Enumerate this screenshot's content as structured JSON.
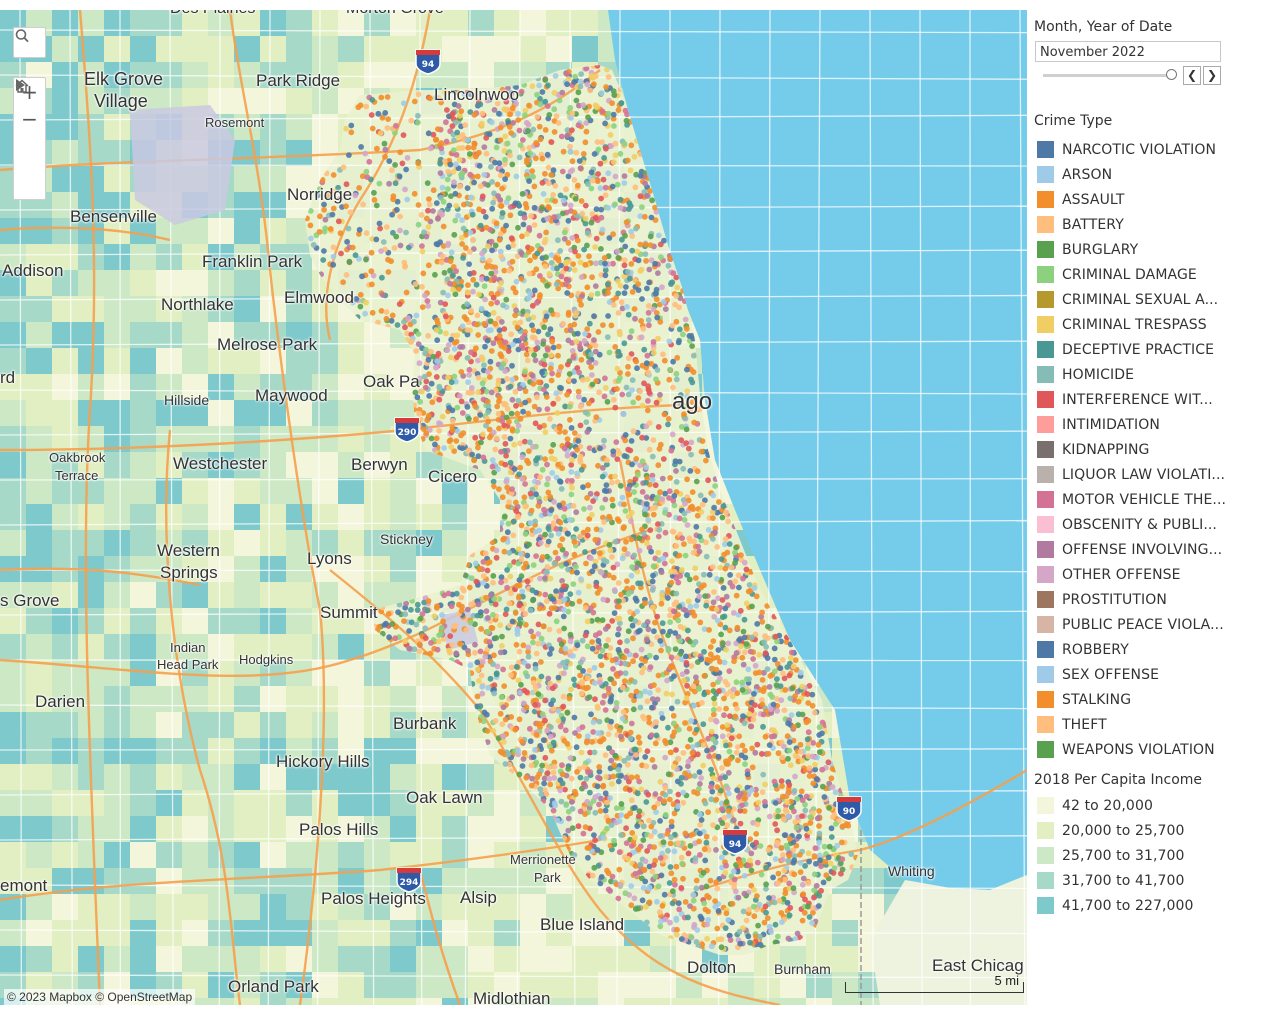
{
  "filter": {
    "title": "Month, Year of Date",
    "value": "November 2022",
    "prev_icon": "chevron-left-icon",
    "next_icon": "chevron-right-icon"
  },
  "crime_legend": {
    "title": "Crime Type",
    "items": [
      {
        "label": "NARCOTIC VIOLATION",
        "color": "#4e79a7"
      },
      {
        "label": "ARSON",
        "color": "#a0cbe8"
      },
      {
        "label": "ASSAULT",
        "color": "#f28e2b"
      },
      {
        "label": "BATTERY",
        "color": "#ffbe7d"
      },
      {
        "label": "BURGLARY",
        "color": "#59a14f"
      },
      {
        "label": "CRIMINAL DAMAGE",
        "color": "#8cd17d"
      },
      {
        "label": "CRIMINAL SEXUAL A...",
        "color": "#b6992d"
      },
      {
        "label": "CRIMINAL TRESPASS",
        "color": "#f1ce63"
      },
      {
        "label": "DECEPTIVE PRACTICE",
        "color": "#499894"
      },
      {
        "label": "HOMICIDE",
        "color": "#86bcb6"
      },
      {
        "label": "INTERFERENCE WIT...",
        "color": "#e15759"
      },
      {
        "label": "INTIMIDATION",
        "color": "#ff9d9a"
      },
      {
        "label": "KIDNAPPING",
        "color": "#79706e"
      },
      {
        "label": "LIQUOR LAW VIOLATI...",
        "color": "#bab0ac"
      },
      {
        "label": "MOTOR VEHICLE THE...",
        "color": "#d37295"
      },
      {
        "label": "OBSCENITY & PUBLI...",
        "color": "#fabfd2"
      },
      {
        "label": "OFFENSE INVOLVING...",
        "color": "#b07aa1"
      },
      {
        "label": "OTHER OFFENSE",
        "color": "#d4a6c8"
      },
      {
        "label": "PROSTITUTION",
        "color": "#9d7660"
      },
      {
        "label": "PUBLIC PEACE VIOLA...",
        "color": "#d7b5a6"
      },
      {
        "label": "ROBBERY",
        "color": "#4e79a7"
      },
      {
        "label": "SEX OFFENSE",
        "color": "#a0cbe8"
      },
      {
        "label": "STALKING",
        "color": "#f28e2b"
      },
      {
        "label": "THEFT",
        "color": "#ffbe7d"
      },
      {
        "label": "WEAPONS VIOLATION",
        "color": "#59a14f"
      }
    ]
  },
  "income_legend": {
    "title": "2018 Per Capita Income",
    "items": [
      {
        "label": "42 to 20,000",
        "color": "#f4f6dc"
      },
      {
        "label": "20,000 to 25,700",
        "color": "#e2efc3"
      },
      {
        "label": "25,700 to 31,700",
        "color": "#cce8c4"
      },
      {
        "label": "31,700 to 41,700",
        "color": "#a6d9c8"
      },
      {
        "label": "41,700 to 227,000",
        "color": "#7ec9cc"
      }
    ]
  },
  "map": {
    "attribution": "© 2023 Mapbox  © OpenStreetMap",
    "scale_label": "5 mi",
    "controls": [
      "search-icon",
      "zoom-in-icon",
      "zoom-out-icon",
      "home-icon",
      "play-icon"
    ],
    "places": [
      {
        "name": "Des Plaines"
      },
      {
        "name": "Morton Grove"
      },
      {
        "name": "Elk Grove"
      },
      {
        "name": "Village"
      },
      {
        "name": "Park Ridge"
      },
      {
        "name": "Lincolnwoo"
      },
      {
        "name": "Rosemont"
      },
      {
        "name": "Norridge"
      },
      {
        "name": "Bensenville"
      },
      {
        "name": "Addison"
      },
      {
        "name": "Franklin Park"
      },
      {
        "name": "Northlake"
      },
      {
        "name": "Elmwood"
      },
      {
        "name": "Melrose Park"
      },
      {
        "name": "Oak Pa"
      },
      {
        "name": "Hillside"
      },
      {
        "name": "Maywood"
      },
      {
        "name": "rd"
      },
      {
        "name": "ago"
      },
      {
        "name": "Oakbrook"
      },
      {
        "name": "Terrace"
      },
      {
        "name": "Westchester"
      },
      {
        "name": "Berwyn"
      },
      {
        "name": "Cicero"
      },
      {
        "name": "Stickney"
      },
      {
        "name": "Western"
      },
      {
        "name": "Springs"
      },
      {
        "name": "Lyons"
      },
      {
        "name": "s Grove"
      },
      {
        "name": "Summit"
      },
      {
        "name": "Indian"
      },
      {
        "name": "Head Park"
      },
      {
        "name": "Hodgkins"
      },
      {
        "name": "Darien"
      },
      {
        "name": "Burbank"
      },
      {
        "name": "Hickory Hills"
      },
      {
        "name": "Oak Lawn"
      },
      {
        "name": "Palos Hills"
      },
      {
        "name": "Merrionette"
      },
      {
        "name": "Park"
      },
      {
        "name": "Whiting"
      },
      {
        "name": "emont"
      },
      {
        "name": "Palos Heights"
      },
      {
        "name": "Alsip"
      },
      {
        "name": "Blue Island"
      },
      {
        "name": "Dolton"
      },
      {
        "name": "Burnham"
      },
      {
        "name": "East Chicag"
      },
      {
        "name": "Orland Park"
      },
      {
        "name": "Midlothian"
      },
      {
        "name": "94"
      },
      {
        "name": "290"
      },
      {
        "name": "294"
      },
      {
        "name": "90"
      }
    ]
  }
}
